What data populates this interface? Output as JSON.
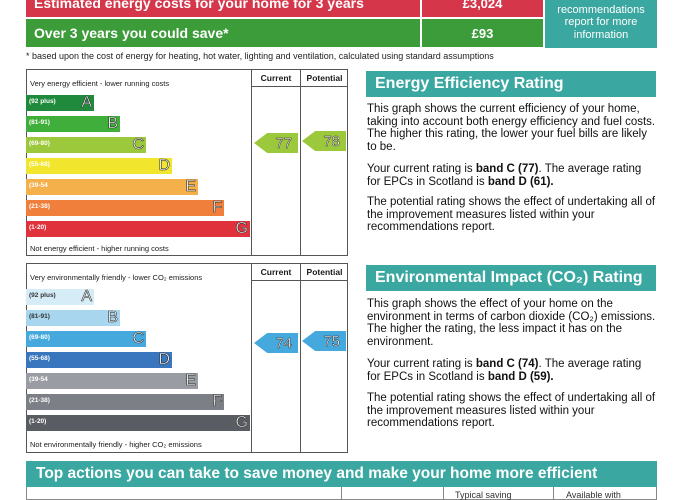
{
  "costs": {
    "estimated_label": "Estimated energy costs for your home for 3 years",
    "estimated_value": "£3,024",
    "save_label": "Over 3 years you could save*",
    "save_value": "£93",
    "rec_text": "recommendations report for more information",
    "footnote": "* based upon the cost of energy for heating, hot water, lighting and ventilation, calculated using standard assumptions"
  },
  "energy_chart": {
    "top_label": "Very energy efficient - lower running costs",
    "bottom_label": "Not energy efficient - higher running costs",
    "current_header": "Current",
    "potential_header": "Potential",
    "current_value": "77",
    "potential_value": "78",
    "bands": [
      {
        "range": "(92 plus)",
        "letter": "A",
        "color": "#1f8a3c"
      },
      {
        "range": "(81-91)",
        "letter": "B",
        "color": "#3fae3a"
      },
      {
        "range": "(69-80)",
        "letter": "C",
        "color": "#9cc83b"
      },
      {
        "range": "(55-68)",
        "letter": "D",
        "color": "#f2e52e"
      },
      {
        "range": "(39-54",
        "letter": "E",
        "color": "#f4b04a"
      },
      {
        "range": "(21-38)",
        "letter": "F",
        "color": "#ef7f3a"
      },
      {
        "range": "(1-20)",
        "letter": "G",
        "color": "#e0323c"
      }
    ]
  },
  "env_chart": {
    "top_label": "Very environmentally friendly - lower CO₂ emissions",
    "bottom_label": "Not environmentally friendly - higher CO₂ emissions",
    "current_header": "Current",
    "potential_header": "Potential",
    "current_value": "74",
    "potential_value": "75",
    "bands": [
      {
        "range": "(92 plus)",
        "letter": "A",
        "color": "#d6ecf7"
      },
      {
        "range": "(81-91)",
        "letter": "B",
        "color": "#a9d6ef"
      },
      {
        "range": "(69-80)",
        "letter": "C",
        "color": "#46a9de"
      },
      {
        "range": "(55-68)",
        "letter": "D",
        "color": "#3a76bd"
      },
      {
        "range": "(39-54",
        "letter": "E",
        "color": "#9a9ca3"
      },
      {
        "range": "(21-38)",
        "letter": "F",
        "color": "#7d7f86"
      },
      {
        "range": "(1-20)",
        "letter": "G",
        "color": "#5a5c63"
      }
    ]
  },
  "energy_panel": {
    "title": "Energy Efficiency Rating",
    "p1": "This graph shows the current efficiency of your home, taking into account both energy efficiency and fuel costs. The higher this rating, the lower your fuel bills are likely to be.",
    "p2_a": "Your current rating is ",
    "p2_b": "band C (77)",
    "p2_c": ". The average rating for EPCs in Scotland is ",
    "p2_d": "band D (61).",
    "p3": "The potential rating shows the effect of undertaking all of the improvement measures listed within your recommendations report."
  },
  "env_panel": {
    "title": "Environmental Impact (CO₂) Rating",
    "p1": "This graph shows the effect of your home on the environment in terms of carbon dioxide (CO₂) emissions. The higher the rating, the less impact it has on the environment.",
    "p2_a": "Your current rating is ",
    "p2_b": "band C (74)",
    "p2_c": ". The average rating for EPCs in Scotland is ",
    "p2_d": "band D (59).",
    "p3": "The potential rating shows the effect of undertaking all of the improvement measures listed within your recommendations report."
  },
  "bottom": {
    "banner": "Top actions you can take to save money and make your home more efficient",
    "col1": "Typical saving",
    "col2": "Available with"
  },
  "colors": {
    "accent": "#3aa7a1",
    "cost_red": "#d5364a",
    "cost_green": "#3d9c3a"
  }
}
